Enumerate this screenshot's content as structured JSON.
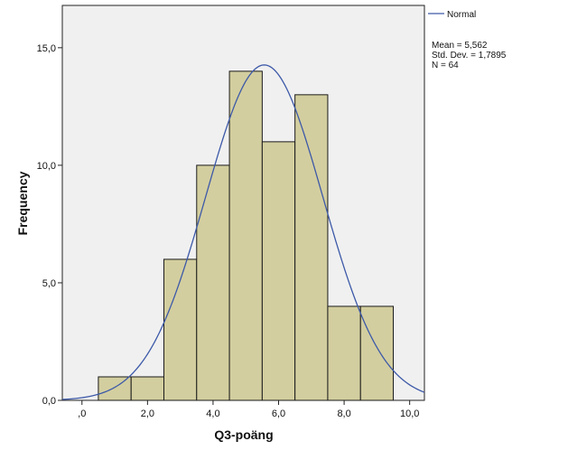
{
  "chart_data": {
    "type": "bar",
    "subtype": "histogram",
    "xlabel": "Q3-poäng",
    "ylabel": "Frequency",
    "xlim": [
      -0.6,
      10.45
    ],
    "ylim": [
      0,
      16.8
    ],
    "xticks": [
      0,
      2,
      4,
      6,
      8,
      10
    ],
    "xtick_labels": [
      ",0",
      "2,0",
      "4,0",
      "6,0",
      "8,0",
      "10,0"
    ],
    "yticks": [
      0,
      5,
      10,
      15
    ],
    "ytick_labels": [
      "0,0",
      "5,0",
      "10,0",
      "15,0"
    ],
    "bins": [
      {
        "from": 0.5,
        "to": 1.5,
        "value": 1
      },
      {
        "from": 1.5,
        "to": 2.5,
        "value": 1
      },
      {
        "from": 2.5,
        "to": 3.5,
        "value": 6
      },
      {
        "from": 3.5,
        "to": 4.5,
        "value": 10
      },
      {
        "from": 4.5,
        "to": 5.5,
        "value": 14
      },
      {
        "from": 5.5,
        "to": 6.5,
        "value": 11
      },
      {
        "from": 6.5,
        "to": 7.5,
        "value": 13
      },
      {
        "from": 7.5,
        "to": 8.5,
        "value": 4
      },
      {
        "from": 8.5,
        "to": 9.5,
        "value": 4
      }
    ],
    "normal_curve": {
      "name": "Normal",
      "mean": 5.562,
      "std_dev": 1.7895,
      "n": 64,
      "bin_width": 1
    },
    "legend": {
      "entries": [
        "Normal"
      ],
      "placement": "right"
    },
    "stats": {
      "mean_label": "Mean = 5,562",
      "std_label": "Std. Dev. = 1,7895",
      "n_label": "N = 64"
    },
    "colors": {
      "bar_fill": "#d3ce9f",
      "bar_stroke": "#1a1a1a",
      "curve": "#3c59a8",
      "plot_background": "#f0f0f0",
      "axis": "#222222"
    },
    "grid": false
  }
}
